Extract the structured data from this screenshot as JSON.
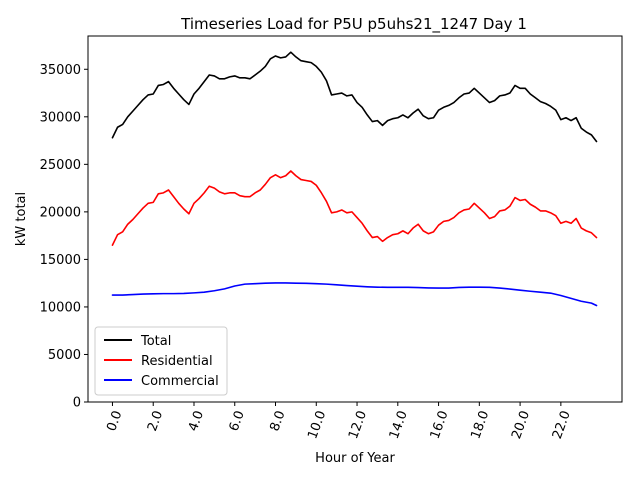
{
  "chart_data": {
    "type": "line",
    "title": "Timeseries Load for P5U p5uhs21_1247  Day 1",
    "xlabel": "Hour of Year",
    "ylabel": "kW total",
    "xlim": [
      -1.2,
      25.0
    ],
    "ylim": [
      0,
      38500
    ],
    "x_ticks": [
      0,
      2,
      4,
      6,
      8,
      10,
      12,
      14,
      16,
      18,
      20,
      22
    ],
    "x_tick_labels": [
      "0.0",
      "2.0",
      "4.0",
      "6.0",
      "8.0",
      "10.0",
      "12.0",
      "14.0",
      "16.0",
      "18.0",
      "20.0",
      "22.0"
    ],
    "y_ticks": [
      0,
      5000,
      10000,
      15000,
      20000,
      25000,
      30000,
      35000
    ],
    "y_tick_labels": [
      "0",
      "5000",
      "10000",
      "15000",
      "20000",
      "25000",
      "30000",
      "35000"
    ],
    "grid": false,
    "legend_position": "lower-left",
    "series": [
      {
        "name": "Total",
        "color": "#000000",
        "x": [
          0,
          0.25,
          0.5,
          0.75,
          1,
          1.25,
          1.5,
          1.75,
          2,
          2.25,
          2.5,
          2.75,
          3,
          3.25,
          3.5,
          3.75,
          4,
          4.25,
          4.5,
          4.75,
          5,
          5.25,
          5.5,
          5.75,
          6,
          6.25,
          6.5,
          6.75,
          7,
          7.25,
          7.5,
          7.75,
          8,
          8.25,
          8.5,
          8.75,
          9,
          9.25,
          9.5,
          9.75,
          10,
          10.25,
          10.5,
          10.75,
          11,
          11.25,
          11.5,
          11.75,
          12,
          12.25,
          12.5,
          12.75,
          13,
          13.25,
          13.5,
          13.75,
          14,
          14.25,
          14.5,
          14.75,
          15,
          15.25,
          15.5,
          15.75,
          16,
          16.25,
          16.5,
          16.75,
          17,
          17.25,
          17.5,
          17.75,
          18,
          18.25,
          18.5,
          18.75,
          19,
          19.25,
          19.5,
          19.75,
          20,
          20.25,
          20.5,
          20.75,
          21,
          21.25,
          21.5,
          21.75,
          22,
          22.25,
          22.5,
          22.75,
          23,
          23.25,
          23.5,
          23.75
        ],
        "values": [
          27800,
          28900,
          29200,
          30000,
          30600,
          31200,
          31800,
          32300,
          32400,
          33300,
          33400,
          33700,
          33000,
          32400,
          31800,
          31300,
          32400,
          33000,
          33700,
          34400,
          34300,
          34000,
          34000,
          34200,
          34300,
          34100,
          34100,
          34000,
          34400,
          34800,
          35300,
          36100,
          36400,
          36200,
          36300,
          36800,
          36300,
          35900,
          35800,
          35700,
          35300,
          34700,
          33800,
          32300,
          32400,
          32500,
          32200,
          32300,
          31500,
          31000,
          30200,
          29500,
          29600,
          29100,
          29600,
          29800,
          29900,
          30200,
          29900,
          30400,
          30800,
          30100,
          29800,
          29900,
          30700,
          31000,
          31200,
          31500,
          32000,
          32400,
          32500,
          33000,
          32500,
          32000,
          31500,
          31700,
          32200,
          32300,
          32500,
          33300,
          33000,
          33000,
          32400,
          32000,
          31600,
          31400,
          31100,
          30700,
          29700,
          29900,
          29600,
          29900,
          28800,
          28400,
          28100,
          27400
        ]
      },
      {
        "name": "Residential",
        "color": "#ff0000",
        "x": [
          0,
          0.25,
          0.5,
          0.75,
          1,
          1.25,
          1.5,
          1.75,
          2,
          2.25,
          2.5,
          2.75,
          3,
          3.25,
          3.5,
          3.75,
          4,
          4.25,
          4.5,
          4.75,
          5,
          5.25,
          5.5,
          5.75,
          6,
          6.25,
          6.5,
          6.75,
          7,
          7.25,
          7.5,
          7.75,
          8,
          8.25,
          8.5,
          8.75,
          9,
          9.25,
          9.5,
          9.75,
          10,
          10.25,
          10.5,
          10.75,
          11,
          11.25,
          11.5,
          11.75,
          12,
          12.25,
          12.5,
          12.75,
          13,
          13.25,
          13.5,
          13.75,
          14,
          14.25,
          14.5,
          14.75,
          15,
          15.25,
          15.5,
          15.75,
          16,
          16.25,
          16.5,
          16.75,
          17,
          17.25,
          17.5,
          17.75,
          18,
          18.25,
          18.5,
          18.75,
          19,
          19.25,
          19.5,
          19.75,
          20,
          20.25,
          20.5,
          20.75,
          21,
          21.25,
          21.5,
          21.75,
          22,
          22.25,
          22.5,
          22.75,
          23,
          23.25,
          23.5,
          23.75
        ],
        "values": [
          16500,
          17600,
          17900,
          18700,
          19200,
          19800,
          20400,
          20900,
          21000,
          21900,
          22000,
          22300,
          21600,
          20900,
          20300,
          19800,
          20900,
          21400,
          22000,
          22700,
          22500,
          22100,
          21900,
          22000,
          22000,
          21700,
          21600,
          21600,
          22000,
          22300,
          22900,
          23600,
          23900,
          23600,
          23800,
          24300,
          23800,
          23400,
          23300,
          23200,
          22800,
          22000,
          21100,
          19900,
          20000,
          20200,
          19900,
          20000,
          19400,
          18800,
          18000,
          17300,
          17400,
          16900,
          17300,
          17600,
          17700,
          18000,
          17700,
          18300,
          18700,
          18000,
          17700,
          17900,
          18600,
          19000,
          19100,
          19400,
          19900,
          20200,
          20300,
          20900,
          20400,
          19900,
          19300,
          19500,
          20100,
          20200,
          20600,
          21500,
          21200,
          21300,
          20800,
          20500,
          20100,
          20100,
          19900,
          19600,
          18800,
          19000,
          18800,
          19300,
          18300,
          18000,
          17800,
          17300
        ]
      },
      {
        "name": "Commercial",
        "color": "#0000ff",
        "x": [
          0,
          0.5,
          1,
          1.5,
          2,
          2.5,
          3,
          3.5,
          4,
          4.5,
          5,
          5.5,
          6,
          6.5,
          7,
          7.5,
          8,
          8.5,
          9,
          9.5,
          10,
          10.5,
          11,
          11.5,
          12,
          12.5,
          13,
          13.5,
          14,
          14.5,
          15,
          15.5,
          16,
          16.5,
          17,
          17.5,
          18,
          18.5,
          19,
          19.5,
          20,
          20.5,
          21,
          21.5,
          22,
          22.5,
          23,
          23.5,
          23.75
        ],
        "values": [
          11250,
          11250,
          11300,
          11350,
          11380,
          11400,
          11400,
          11420,
          11480,
          11550,
          11700,
          11900,
          12200,
          12400,
          12450,
          12500,
          12520,
          12520,
          12500,
          12480,
          12450,
          12400,
          12330,
          12250,
          12180,
          12120,
          12080,
          12060,
          12060,
          12060,
          12040,
          12000,
          11980,
          11990,
          12050,
          12080,
          12080,
          12060,
          11980,
          11880,
          11760,
          11650,
          11550,
          11450,
          11200,
          10900,
          10600,
          10400,
          10150
        ]
      }
    ]
  }
}
